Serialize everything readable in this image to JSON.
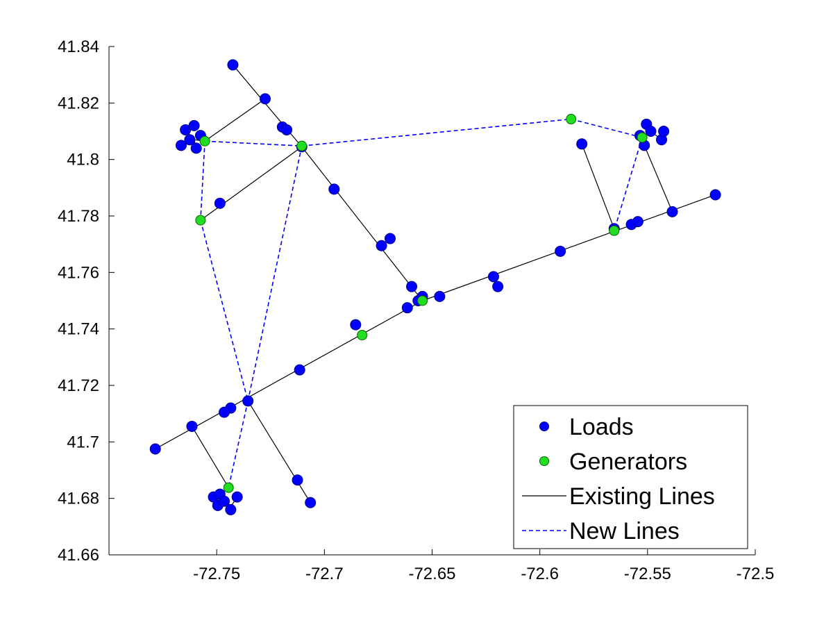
{
  "chart_data": {
    "type": "scatter",
    "xlim": [
      -72.8,
      -72.5
    ],
    "ylim": [
      41.66,
      41.84
    ],
    "xticks": [
      -72.75,
      -72.7,
      -72.65,
      -72.6,
      -72.55,
      -72.5
    ],
    "yticks": [
      41.66,
      41.68,
      41.7,
      41.72,
      41.74,
      41.76,
      41.78,
      41.8,
      41.82,
      41.84
    ],
    "xtick_labels": [
      "-72.75",
      "-72.7",
      "-72.65",
      "-72.6",
      "-72.55",
      "-72.5"
    ],
    "ytick_labels": [
      "41.66",
      "41.68",
      "41.7",
      "41.72",
      "41.74",
      "41.76",
      "41.78",
      "41.8",
      "41.82",
      "41.84"
    ],
    "legend": {
      "placement": "bottom-right",
      "entries": [
        "Loads",
        "Generators",
        "Existing Lines",
        "New Lines"
      ]
    },
    "colors": {
      "loads": "#0000ff",
      "loads_edge": "#00008b",
      "generators": "#22dd22",
      "generators_edge": "#006400",
      "existing_lines": "#000000",
      "new_lines": "#0000ff"
    },
    "series": [
      {
        "name": "Loads",
        "kind": "points",
        "points": [
          [
            -72.7425,
            41.8335
          ],
          [
            -72.7275,
            41.8215
          ],
          [
            -72.7195,
            41.8115
          ],
          [
            -72.7175,
            41.8105
          ],
          [
            -72.7105,
            41.8045
          ],
          [
            -72.6955,
            41.7895
          ],
          [
            -72.7485,
            41.7845
          ],
          [
            -72.6735,
            41.7695
          ],
          [
            -72.6695,
            41.772
          ],
          [
            -72.6595,
            41.755
          ],
          [
            -72.6565,
            41.75
          ],
          [
            -72.6545,
            41.7515
          ],
          [
            -72.6465,
            41.7515
          ],
          [
            -72.6615,
            41.7475
          ],
          [
            -72.6215,
            41.7585
          ],
          [
            -72.6195,
            41.755
          ],
          [
            -72.5905,
            41.7675
          ],
          [
            -72.5575,
            41.777
          ],
          [
            -72.5545,
            41.778
          ],
          [
            -72.5385,
            41.7815
          ],
          [
            -72.5185,
            41.7875
          ],
          [
            -72.5805,
            41.8055
          ],
          [
            -72.5655,
            41.7755
          ],
          [
            -72.6855,
            41.7415
          ],
          [
            -72.7115,
            41.7255
          ],
          [
            -72.7355,
            41.7145
          ],
          [
            -72.7435,
            41.712
          ],
          [
            -72.7465,
            41.7105
          ],
          [
            -72.7615,
            41.7055
          ],
          [
            -72.7785,
            41.6975
          ],
          [
            -72.7125,
            41.6865
          ],
          [
            -72.7065,
            41.6785
          ],
          [
            -72.7515,
            41.6805
          ],
          [
            -72.7485,
            41.6815
          ],
          [
            -72.7495,
            41.6775
          ],
          [
            -72.7465,
            41.679
          ],
          [
            -72.7435,
            41.676
          ],
          [
            -72.7405,
            41.6805
          ],
          [
            -72.7665,
            41.805
          ],
          [
            -72.7645,
            41.8105
          ],
          [
            -72.7625,
            41.807
          ],
          [
            -72.7605,
            41.812
          ],
          [
            -72.7595,
            41.804
          ],
          [
            -72.7575,
            41.8085
          ],
          [
            -72.5535,
            41.8085
          ],
          [
            -72.5515,
            41.805
          ],
          [
            -72.5505,
            41.8125
          ],
          [
            -72.5485,
            41.81
          ],
          [
            -72.5435,
            41.807
          ],
          [
            -72.5425,
            41.81
          ]
        ]
      },
      {
        "name": "Generators",
        "kind": "points",
        "points": [
          [
            -72.7555,
            41.8065
          ],
          [
            -72.7105,
            41.8048
          ],
          [
            -72.7575,
            41.7785
          ],
          [
            -72.5855,
            41.8143
          ],
          [
            -72.5525,
            41.8078
          ],
          [
            -72.5655,
            41.7748
          ],
          [
            -72.6545,
            41.75
          ],
          [
            -72.6825,
            41.7378
          ],
          [
            -72.7445,
            41.6838
          ]
        ]
      },
      {
        "name": "Existing Lines",
        "kind": "segments",
        "segments": [
          [
            [
              -72.7425,
              41.8335
            ],
            [
              -72.7105,
              41.8045
            ]
          ],
          [
            [
              -72.7105,
              41.8045
            ],
            [
              -72.6545,
              41.75
            ]
          ],
          [
            [
              -72.7555,
              41.8065
            ],
            [
              -72.7275,
              41.8215
            ]
          ],
          [
            [
              -72.7575,
              41.7785
            ],
            [
              -72.7105,
              41.8045
            ]
          ],
          [
            [
              -72.7785,
              41.6975
            ],
            [
              -72.6545,
              41.75
            ]
          ],
          [
            [
              -72.6545,
              41.75
            ],
            [
              -72.5185,
              41.7875
            ]
          ],
          [
            [
              -72.7355,
              41.7145
            ],
            [
              -72.7065,
              41.6785
            ]
          ],
          [
            [
              -72.7615,
              41.7055
            ],
            [
              -72.7445,
              41.6838
            ]
          ],
          [
            [
              -72.5805,
              41.8055
            ],
            [
              -72.5655,
              41.7755
            ]
          ],
          [
            [
              -72.5515,
              41.805
            ],
            [
              -72.5385,
              41.7815
            ]
          ],
          [
            [
              -72.7645,
              41.8105
            ],
            [
              -72.7605,
              41.807
            ]
          ],
          [
            [
              -72.7605,
              41.807
            ],
            [
              -72.7595,
              41.804
            ]
          ],
          [
            [
              -72.7605,
              41.807
            ],
            [
              -72.7555,
              41.8065
            ]
          ],
          [
            [
              -72.7645,
              41.8105
            ],
            [
              -72.7625,
              41.8085
            ]
          ],
          [
            [
              -72.5525,
              41.8078
            ],
            [
              -72.5485,
              41.81
            ]
          ],
          [
            [
              -72.5485,
              41.81
            ],
            [
              -72.5505,
              41.8125
            ]
          ],
          [
            [
              -72.5485,
              41.81
            ],
            [
              -72.5435,
              41.807
            ]
          ],
          [
            [
              -72.7495,
              41.6775
            ],
            [
              -72.7465,
              41.6805
            ]
          ],
          [
            [
              -72.7465,
              41.6805
            ],
            [
              -72.7435,
              41.677
            ]
          ],
          [
            [
              -72.7435,
              41.677
            ],
            [
              -72.7405,
              41.6805
            ]
          ]
        ]
      },
      {
        "name": "New Lines",
        "kind": "segments",
        "segments": [
          [
            [
              -72.7555,
              41.8065
            ],
            [
              -72.7105,
              41.8048
            ]
          ],
          [
            [
              -72.7105,
              41.8048
            ],
            [
              -72.5855,
              41.8143
            ]
          ],
          [
            [
              -72.5855,
              41.8143
            ],
            [
              -72.5525,
              41.8078
            ]
          ],
          [
            [
              -72.5525,
              41.8078
            ],
            [
              -72.5655,
              41.7748
            ]
          ],
          [
            [
              -72.7555,
              41.8065
            ],
            [
              -72.7575,
              41.7785
            ]
          ],
          [
            [
              -72.7575,
              41.7785
            ],
            [
              -72.7355,
              41.7145
            ]
          ],
          [
            [
              -72.7105,
              41.8048
            ],
            [
              -72.7355,
              41.7145
            ]
          ],
          [
            [
              -72.7355,
              41.7145
            ],
            [
              -72.7445,
              41.6838
            ]
          ]
        ]
      }
    ]
  }
}
